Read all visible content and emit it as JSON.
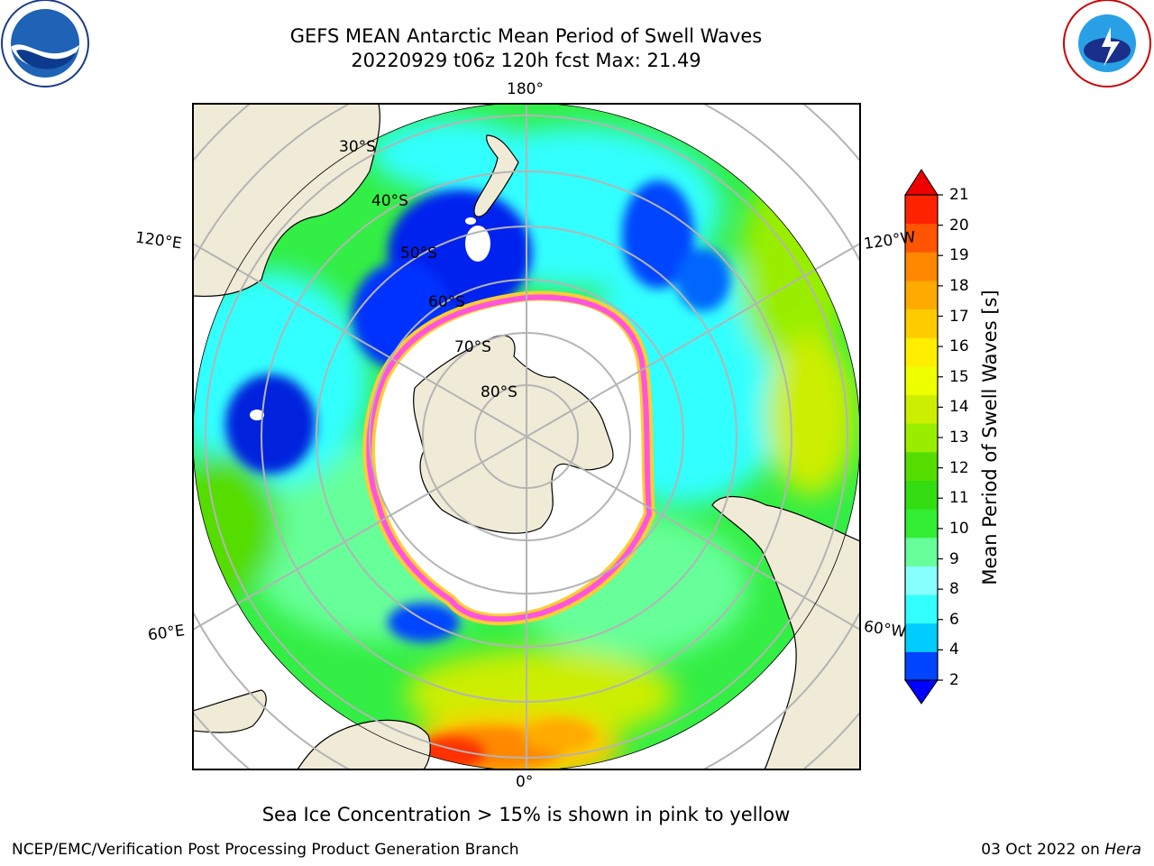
{
  "title_line1": "GEFS MEAN Antarctic Mean Period of Swell Waves",
  "title_line2": "20220929 t06z 120h fcst   Max: 21.49",
  "logos": {
    "noaa": {
      "name": "noaa-logo",
      "text": "NOAA"
    },
    "nws": {
      "name": "nws-logo",
      "text": "NATIONAL WEATHER SERVICE"
    }
  },
  "map": {
    "longitude_labels": {
      "top": "180°",
      "bottom": "0°",
      "left_upper": "120°E",
      "right_upper": "120°W",
      "left_lower": "60°E",
      "right_lower": "60°W"
    },
    "latitude_labels": [
      "30°S",
      "40°S",
      "50°S",
      "60°S",
      "70°S",
      "80°S"
    ],
    "colors": {
      "land": "#efebd6",
      "sea_ice_edge_pink": "#ff55dd",
      "sea_ice_edge_yellow": "#ffcc33",
      "grid": "#b4b4b4"
    }
  },
  "colorbar": {
    "title": "Mean Period of Swell Waves [s]",
    "ticks": [
      "21",
      "20",
      "19",
      "18",
      "17",
      "16",
      "15",
      "14",
      "13",
      "12",
      "11",
      "10",
      "9",
      "8",
      "6",
      "4",
      "2"
    ],
    "colors_bottom_to_top": [
      "#0044ff",
      "#00ccff",
      "#33ffff",
      "#88ffff",
      "#66ff99",
      "#33ee33",
      "#33dd11",
      "#55dd00",
      "#99ee00",
      "#ccee00",
      "#eeff00",
      "#ffee00",
      "#ffcc00",
      "#ffaa00",
      "#ff8800",
      "#ff5500",
      "#ff2200"
    ],
    "under_color": "#0000ff",
    "over_color": "#ee0000"
  },
  "caption": "Sea Ice Concentration > 15% is shown in pink to yellow",
  "footer": {
    "left": "NCEP/EMC/Verification Post Processing Product Generation Branch",
    "right_prefix": "03 Oct 2022 on ",
    "right_host": "Hera"
  }
}
